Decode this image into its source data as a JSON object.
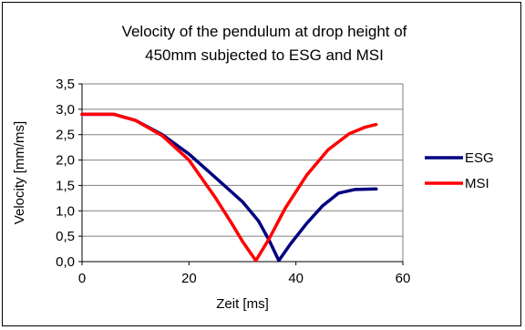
{
  "chart_data": {
    "type": "line",
    "title_lines": [
      "Velocity of the pendulum at drop height of",
      "450mm subjected to ESG and MSI"
    ],
    "xlabel": "Zeit [ms]",
    "ylabel": "Velocity [mm/ms]",
    "xlim": [
      0,
      60
    ],
    "ylim": [
      0,
      3.5
    ],
    "xticks": [
      0,
      20,
      40,
      60
    ],
    "yticks": [
      0,
      0.5,
      1,
      1.5,
      2,
      2.5,
      3,
      3.5
    ],
    "xtick_labels": [
      "0",
      "20",
      "40",
      "60"
    ],
    "ytick_labels": [
      "0,0",
      "0,5",
      "1,0",
      "1,5",
      "2,0",
      "2,5",
      "3,0",
      "3,5"
    ],
    "grid": "horizontal",
    "legend": "right",
    "series": [
      {
        "name": "ESG",
        "color": "#000080",
        "x": [
          0,
          6,
          10,
          15,
          20,
          25,
          30,
          33,
          35,
          36.8,
          39,
          42,
          45,
          48,
          51,
          55
        ],
        "y": [
          2.9,
          2.9,
          2.78,
          2.5,
          2.12,
          1.65,
          1.18,
          0.8,
          0.42,
          0.02,
          0.35,
          0.75,
          1.1,
          1.35,
          1.42,
          1.43
        ]
      },
      {
        "name": "MSI",
        "color": "#ff0000",
        "x": [
          0,
          6,
          10,
          15,
          20,
          25,
          28,
          30,
          32.5,
          35,
          38,
          42,
          46,
          50,
          53,
          55
        ],
        "y": [
          2.9,
          2.9,
          2.78,
          2.48,
          2.0,
          1.25,
          0.75,
          0.4,
          0.02,
          0.45,
          1.05,
          1.7,
          2.2,
          2.52,
          2.65,
          2.7
        ]
      }
    ]
  }
}
